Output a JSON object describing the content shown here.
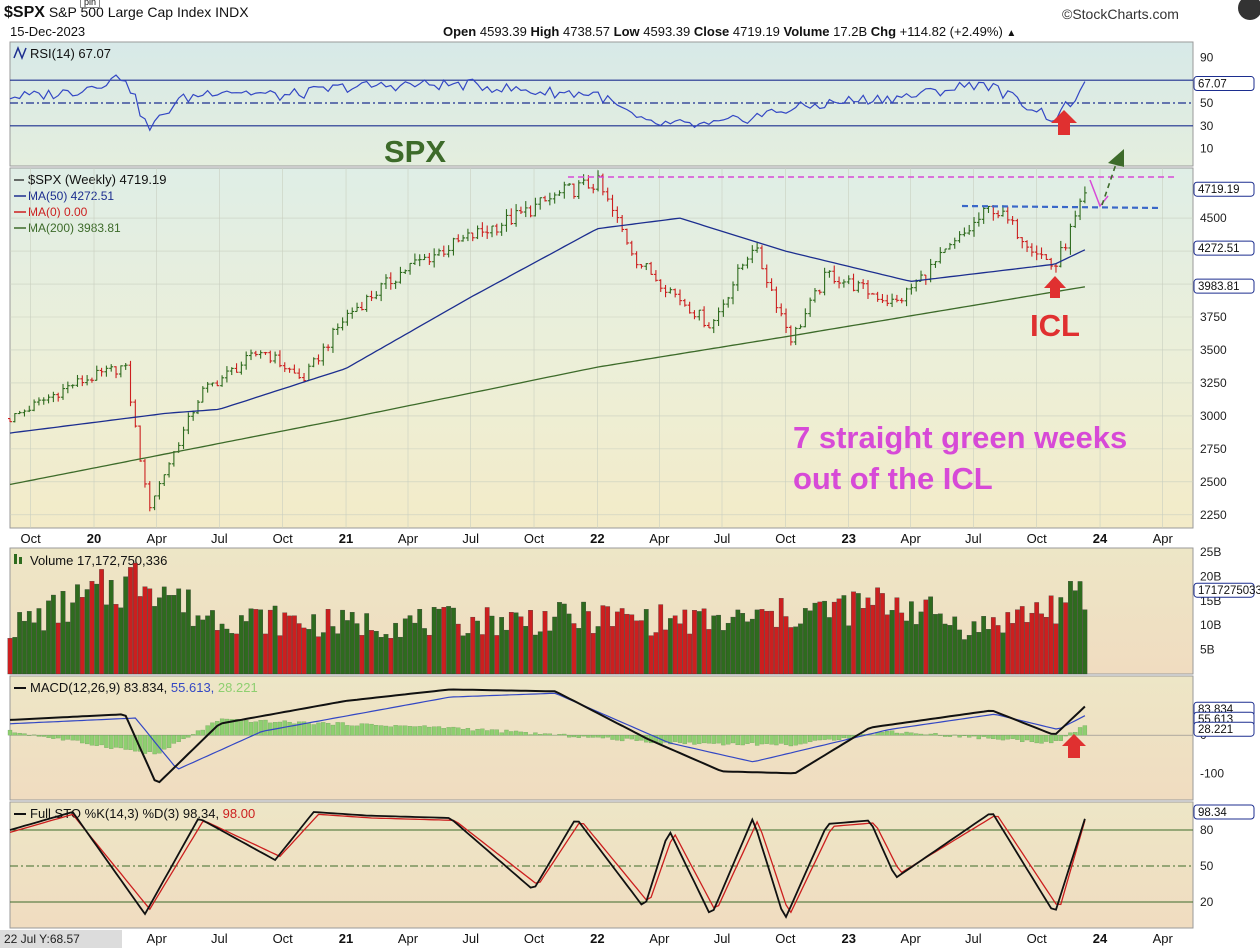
{
  "header": {
    "symbol": "$SPX",
    "name": "S&P 500 Large Cap Index",
    "exchange": "INDX",
    "date": "15-Dec-2023",
    "watermark": "©StockCharts.com",
    "tag": "pin",
    "quote": [
      {
        "label": "Open",
        "value": "4593.39"
      },
      {
        "label": "High",
        "value": "4738.57"
      },
      {
        "label": "Low",
        "value": "4593.39"
      },
      {
        "label": "Close",
        "value": "4719.19"
      },
      {
        "label": "Volume",
        "value": "17.2B"
      },
      {
        "label": "Chg",
        "value": "+114.82 (+2.49%)"
      }
    ],
    "quote_arrow": "▲"
  },
  "footer": {
    "cursor_readout": "22 Jul Y:68.57"
  },
  "colors": {
    "up": "#2e6b1e",
    "down": "#cc1f1f",
    "ma50": "#1c2e8f",
    "ma200": "#3d6b2a",
    "rsi": "#3347c4",
    "annotation_magenta": "#d74ad7",
    "annotation_red": "#e03030",
    "annotation_green": "#3d6b2a"
  },
  "chart_data": [
    {
      "type": "line",
      "panel": "RSI",
      "label": "RSI(14) 67.07",
      "ylim": [
        0,
        100
      ],
      "ticks": [
        "90",
        "67.07",
        "50",
        "30",
        "10"
      ],
      "tick_values": [
        90,
        67.07,
        50,
        30,
        10
      ],
      "reference_lines": [
        70,
        50,
        30
      ],
      "current": "67.07",
      "series": [
        {
          "name": "RSI(14)",
          "x": [
            "2019-10-01",
            "2019-12-01",
            "2020-02-15",
            "2020-03-20",
            "2020-05-01",
            "2020-07-01",
            "2020-10-01",
            "2021-01-01",
            "2021-04-01",
            "2021-07-01",
            "2021-10-01",
            "2022-01-01",
            "2022-03-10",
            "2022-06-15",
            "2022-09-30",
            "2023-01-01",
            "2023-04-01",
            "2023-07-15",
            "2023-10-27",
            "2023-12-15"
          ],
          "values": [
            56,
            60,
            74,
            26,
            52,
            62,
            56,
            64,
            66,
            66,
            60,
            58,
            32,
            30,
            44,
            52,
            56,
            68,
            36,
            67
          ]
        }
      ]
    },
    {
      "type": "line",
      "panel": "price",
      "label": "$SPX (Weekly) 4719.19",
      "legend": [
        {
          "name": "MA(50) 4272.51",
          "color": "#1c2e8f"
        },
        {
          "name": "MA(0) 0.00",
          "color": "#cc1f1f"
        },
        {
          "name": "MA(200) 3983.81",
          "color": "#3d6b2a"
        }
      ],
      "ylim": [
        2150,
        4880
      ],
      "yticks": [
        4500,
        4250,
        4000,
        3750,
        3500,
        3250,
        3000,
        2750,
        2500,
        2250
      ],
      "ytick_labels": [
        "4500",
        "4250",
        "4000",
        "3750",
        "3500",
        "3250",
        "3000",
        "2750",
        "2500",
        "2250"
      ],
      "value_tags": [
        {
          "text": "4719.19",
          "value": 4719.19
        },
        {
          "text": "4272.51",
          "value": 4272.51
        },
        {
          "text": "3983.81",
          "value": 3983.81
        }
      ],
      "series": [
        {
          "name": "$SPX (Weekly)",
          "x": [
            "2019-09-01",
            "2019-12-01",
            "2020-02-15",
            "2020-03-20",
            "2020-06-05",
            "2020-09-01",
            "2020-10-30",
            "2021-01-01",
            "2021-04-01",
            "2021-07-01",
            "2021-09-01",
            "2021-11-15",
            "2022-01-01",
            "2022-03-01",
            "2022-06-15",
            "2022-08-15",
            "2022-10-10",
            "2022-12-01",
            "2023-03-10",
            "2023-07-28",
            "2023-10-27",
            "2023-12-15"
          ],
          "values": [
            2980,
            3240,
            3380,
            2300,
            3180,
            3500,
            3270,
            3760,
            4130,
            4360,
            4500,
            4700,
            4770,
            4170,
            3680,
            4300,
            3580,
            4080,
            3850,
            4590,
            4120,
            4719
          ]
        },
        {
          "name": "MA(50)",
          "x": [
            "2019-09-01",
            "2020-04-15",
            "2020-07-01",
            "2021-01-01",
            "2021-07-01",
            "2022-01-01",
            "2022-05-01",
            "2022-10-01",
            "2023-04-01",
            "2023-10-27",
            "2023-12-15"
          ],
          "values": [
            2870,
            3020,
            3050,
            3360,
            3900,
            4420,
            4500,
            4250,
            4020,
            4150,
            4272.51
          ]
        },
        {
          "name": "MA(200)",
          "x": [
            "2019-09-01",
            "2021-01-01",
            "2022-01-01",
            "2022-10-01",
            "2023-12-15"
          ],
          "values": [
            2480,
            2980,
            3370,
            3600,
            3983.81
          ]
        }
      ],
      "annotations": [
        {
          "text": "SPX",
          "color": "#3d6b2a"
        },
        {
          "text": "ICL",
          "color": "#e03030"
        },
        {
          "text": "7 straight green weeks",
          "color": "#d74ad7"
        },
        {
          "text": "out of the ICL",
          "color": "#d74ad7"
        }
      ],
      "xtick_labels": [
        "Oct",
        "20",
        "Apr",
        "Jul",
        "Oct",
        "21",
        "Apr",
        "Jul",
        "Oct",
        "22",
        "Apr",
        "Jul",
        "Oct",
        "23",
        "Apr",
        "Jul",
        "Oct",
        "24",
        "Apr"
      ],
      "xticks": [
        "2019-10-01",
        "2020-01-01",
        "2020-04-01",
        "2020-07-01",
        "2020-10-01",
        "2021-01-01",
        "2021-04-01",
        "2021-07-01",
        "2021-10-01",
        "2022-01-01",
        "2022-04-01",
        "2022-07-01",
        "2022-10-01",
        "2023-01-01",
        "2023-04-01",
        "2023-07-01",
        "2023-10-01",
        "2024-01-01",
        "2024-04-01"
      ]
    },
    {
      "type": "bar",
      "panel": "volume",
      "label": "Volume 17,172,750,336",
      "ylim": [
        0,
        25000000000
      ],
      "yticks": [
        25000000000,
        20000000000,
        15000000000,
        10000000000,
        5000000000
      ],
      "ytick_labels": [
        "25B",
        "20B",
        "15B",
        "10B",
        "5B"
      ],
      "value_tag": "17172750336",
      "series": [
        {
          "name": "Volume",
          "x": [
            "2019-09-01",
            "2020-03-20",
            "2020-06-01",
            "2021-01-01",
            "2022-01-01",
            "2022-07-01",
            "2023-03-15",
            "2023-07-01",
            "2023-12-15"
          ],
          "values": [
            10200000000.0,
            22000000000.0,
            13000000000.0,
            11000000000.0,
            12500000000.0,
            11500000000.0,
            16000000000.0,
            10000000000.0,
            17170000000.0
          ]
        }
      ]
    },
    {
      "type": "line",
      "panel": "MACD",
      "label": "MACD(12,26,9) 83.834, 55.613, 28.221",
      "label_parts": [
        "MACD(12,26,9) 83.834, ",
        "55.613, ",
        "28.221"
      ],
      "ylim": [
        -170,
        150
      ],
      "yticks": [
        0,
        -100
      ],
      "ytick_labels": [
        "0",
        "-100"
      ],
      "value_tags": [
        "83.834",
        "55.613",
        "28.221"
      ],
      "series": [
        {
          "name": "MACD",
          "x": [
            "2019-09-01",
            "2020-02-15",
            "2020-04-01",
            "2020-07-01",
            "2021-01-01",
            "2021-06-01",
            "2021-11-01",
            "2022-03-15",
            "2022-07-01",
            "2022-10-15",
            "2023-02-01",
            "2023-07-28",
            "2023-10-27",
            "2023-12-15"
          ],
          "values": [
            40,
            55,
            -130,
            30,
            90,
            120,
            115,
            -10,
            -95,
            -100,
            20,
            65,
            0,
            83.834
          ]
        },
        {
          "name": "Signal",
          "x": [
            "2019-09-01",
            "2020-03-01",
            "2020-05-01",
            "2020-09-01",
            "2021-06-01",
            "2021-11-01",
            "2022-04-15",
            "2022-08-15",
            "2023-03-01",
            "2023-08-01",
            "2023-11-01",
            "2023-12-15"
          ],
          "values": [
            30,
            45,
            -90,
            10,
            100,
            110,
            -20,
            -70,
            15,
            55,
            15,
            55.613
          ]
        },
        {
          "name": "Histogram",
          "x": [
            "2019-09-01",
            "2020-04-01",
            "2020-07-01",
            "2021-06-01",
            "2022-04-15",
            "2022-10-15",
            "2023-03-01",
            "2023-10-27",
            "2023-12-15"
          ],
          "values": [
            10,
            -50,
            40,
            20,
            -20,
            -25,
            10,
            -20,
            28.221
          ]
        }
      ]
    },
    {
      "type": "line",
      "panel": "stochastic",
      "label": "Full STO %K(14,3) %D(3) 98.34, 98.00",
      "label_parts": [
        "Full STO %K(14,3) %D(3) 98.34, ",
        "98.00"
      ],
      "ylim": [
        0,
        100
      ],
      "yticks": [
        80,
        50,
        20
      ],
      "ytick_labels": [
        "80",
        "50",
        "20"
      ],
      "value_tag": "98.34",
      "series": [
        {
          "name": "%K",
          "x": [
            "2019-09-01",
            "2019-12-01",
            "2020-03-15",
            "2020-06-01",
            "2020-09-20",
            "2020-11-15",
            "2021-02-01",
            "2021-06-01",
            "2021-09-30",
            "2021-12-01",
            "2022-03-10",
            "2022-04-15",
            "2022-06-15",
            "2022-08-15",
            "2022-09-30",
            "2022-12-01",
            "2023-02-01",
            "2023-03-10",
            "2023-07-28",
            "2023-10-27",
            "2023-12-15"
          ],
          "values": [
            80,
            95,
            10,
            90,
            55,
            95,
            92,
            90,
            30,
            90,
            15,
            80,
            8,
            90,
            5,
            85,
            88,
            40,
            95,
            10,
            98.34
          ]
        },
        {
          "name": "%D",
          "x": [
            "2019-09-01",
            "2019-12-01",
            "2020-03-22",
            "2020-06-08",
            "2020-09-27",
            "2020-11-22",
            "2021-02-08",
            "2021-06-08",
            "2021-10-07",
            "2021-12-08",
            "2022-03-17",
            "2022-04-22",
            "2022-06-22",
            "2022-08-22",
            "2022-10-07",
            "2022-12-08",
            "2023-02-08",
            "2023-03-17",
            "2023-08-04",
            "2023-11-03",
            "2023-12-15"
          ],
          "values": [
            78,
            93,
            14,
            88,
            58,
            93,
            90,
            88,
            34,
            88,
            19,
            78,
            12,
            88,
            9,
            83,
            86,
            44,
            93,
            14,
            98
          ]
        }
      ]
    }
  ]
}
